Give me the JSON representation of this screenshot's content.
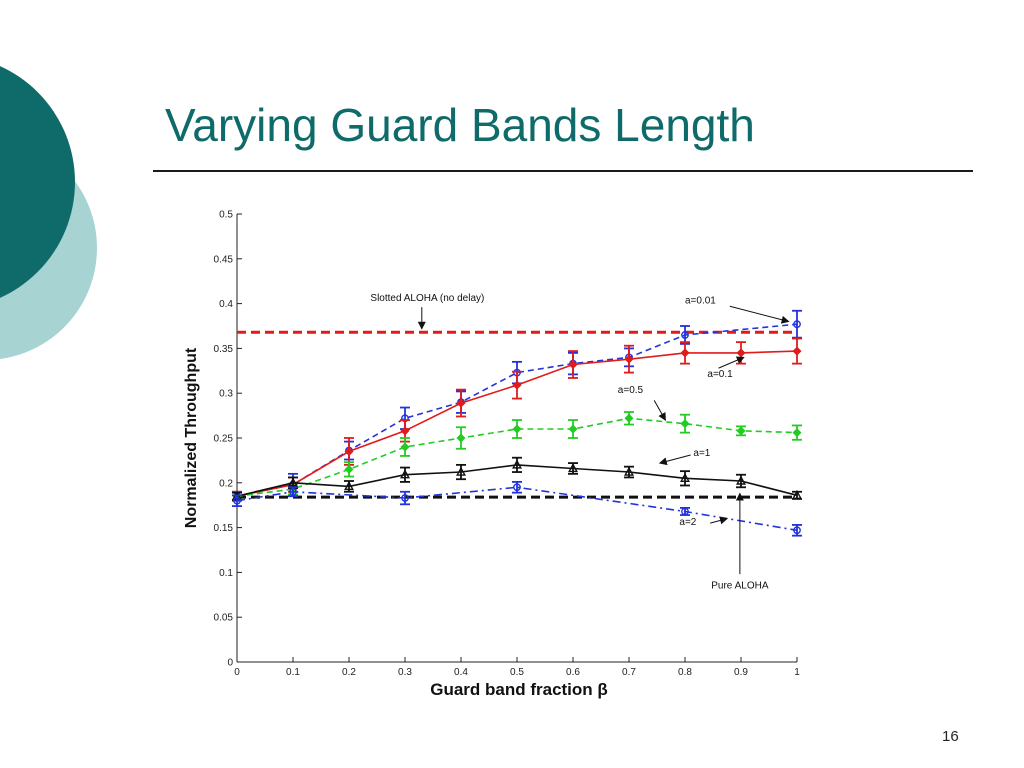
{
  "slide": {
    "title": "Varying Guard Bands Length",
    "page_number": "16",
    "colors": {
      "title": "#0e6b69",
      "deco_dark": "#0e6b69",
      "deco_light": "#a7d3d3"
    }
  },
  "chart_data": {
    "type": "line",
    "title": "",
    "xlabel": "Guard band fraction β",
    "ylabel": "Normalized Throughput",
    "xlim": [
      0,
      1
    ],
    "ylim": [
      0,
      0.5
    ],
    "x_ticks": [
      "0",
      "0.1",
      "0.2",
      "0.3",
      "0.4",
      "0.5",
      "0.6",
      "0.7",
      "0.8",
      "0.9",
      "1"
    ],
    "y_ticks": [
      "0",
      "0.05",
      "0.1",
      "0.15",
      "0.2",
      "0.25",
      "0.3",
      "0.35",
      "0.4",
      "0.45",
      "0.5"
    ],
    "grid": false,
    "series": [
      {
        "name": "a=0.01",
        "color": "#2233dd",
        "dash": "dashed",
        "marker": "circle",
        "points": [
          {
            "x": 0,
            "y": 0.185,
            "err": 0.005
          },
          {
            "x": 0.1,
            "y": 0.198,
            "err": 0.012
          },
          {
            "x": 0.2,
            "y": 0.236,
            "err": 0.01
          },
          {
            "x": 0.3,
            "y": 0.272,
            "err": 0.012
          },
          {
            "x": 0.4,
            "y": 0.29,
            "err": 0.012
          },
          {
            "x": 0.5,
            "y": 0.323,
            "err": 0.012
          },
          {
            "x": 0.6,
            "y": 0.333,
            "err": 0.012
          },
          {
            "x": 0.7,
            "y": 0.34,
            "err": 0.01
          },
          {
            "x": 0.8,
            "y": 0.365,
            "err": 0.01
          },
          {
            "x": 1,
            "y": 0.377,
            "err": 0.015
          }
        ]
      },
      {
        "name": "a=0.1",
        "color": "#e11b1b",
        "dash": "solid",
        "marker": "diamond",
        "points": [
          {
            "x": 0,
            "y": 0.185,
            "err": 0.005
          },
          {
            "x": 0.1,
            "y": 0.198,
            "err": 0.008
          },
          {
            "x": 0.2,
            "y": 0.235,
            "err": 0.015
          },
          {
            "x": 0.3,
            "y": 0.258,
            "err": 0.012
          },
          {
            "x": 0.4,
            "y": 0.289,
            "err": 0.015
          },
          {
            "x": 0.5,
            "y": 0.309,
            "err": 0.015
          },
          {
            "x": 0.6,
            "y": 0.332,
            "err": 0.015
          },
          {
            "x": 0.7,
            "y": 0.338,
            "err": 0.015
          },
          {
            "x": 0.8,
            "y": 0.345,
            "err": 0.012
          },
          {
            "x": 0.9,
            "y": 0.345,
            "err": 0.012
          },
          {
            "x": 1,
            "y": 0.347,
            "err": 0.014
          }
        ]
      },
      {
        "name": "a=0.5",
        "color": "#22cc22",
        "dash": "dashed",
        "marker": "diamond",
        "points": [
          {
            "x": 0,
            "y": 0.185,
            "err": 0.004
          },
          {
            "x": 0.1,
            "y": 0.193,
            "err": 0.006
          },
          {
            "x": 0.2,
            "y": 0.215,
            "err": 0.008
          },
          {
            "x": 0.3,
            "y": 0.24,
            "err": 0.01
          },
          {
            "x": 0.4,
            "y": 0.25,
            "err": 0.012
          },
          {
            "x": 0.5,
            "y": 0.26,
            "err": 0.01
          },
          {
            "x": 0.6,
            "y": 0.26,
            "err": 0.01
          },
          {
            "x": 0.7,
            "y": 0.272,
            "err": 0.007
          },
          {
            "x": 0.8,
            "y": 0.266,
            "err": 0.01
          },
          {
            "x": 0.9,
            "y": 0.258,
            "err": 0.005
          },
          {
            "x": 1,
            "y": 0.256,
            "err": 0.008
          }
        ]
      },
      {
        "name": "a=1",
        "color": "#111111",
        "dash": "solid",
        "marker": "triangle",
        "points": [
          {
            "x": 0,
            "y": 0.185,
            "err": 0.004
          },
          {
            "x": 0.1,
            "y": 0.2,
            "err": 0.006
          },
          {
            "x": 0.2,
            "y": 0.196,
            "err": 0.006
          },
          {
            "x": 0.3,
            "y": 0.209,
            "err": 0.008
          },
          {
            "x": 0.4,
            "y": 0.212,
            "err": 0.008
          },
          {
            "x": 0.5,
            "y": 0.22,
            "err": 0.008
          },
          {
            "x": 0.6,
            "y": 0.216,
            "err": 0.006
          },
          {
            "x": 0.7,
            "y": 0.212,
            "err": 0.006
          },
          {
            "x": 0.8,
            "y": 0.205,
            "err": 0.008
          },
          {
            "x": 0.9,
            "y": 0.202,
            "err": 0.007
          },
          {
            "x": 1,
            "y": 0.186,
            "err": 0.004
          }
        ]
      },
      {
        "name": "a=2",
        "color": "#2233dd",
        "dash": "dashdot",
        "marker": "circle",
        "points": [
          {
            "x": 0,
            "y": 0.18,
            "err": 0.006
          },
          {
            "x": 0.1,
            "y": 0.19,
            "err": 0.005
          },
          {
            "x": 0.3,
            "y": 0.183,
            "err": 0.007
          },
          {
            "x": 0.5,
            "y": 0.195,
            "err": 0.006
          },
          {
            "x": 0.8,
            "y": 0.168,
            "err": 0.004
          },
          {
            "x": 1,
            "y": 0.147,
            "err": 0.006
          }
        ]
      }
    ],
    "reference_lines": [
      {
        "name": "Slotted ALOHA (no delay)",
        "y": 0.368,
        "color": "#e11b1b"
      },
      {
        "name": "Pure ALOHA",
        "y": 0.184,
        "color": "#111111"
      }
    ],
    "annotations": [
      {
        "id": "slotted",
        "text": "Slotted ALOHA (no delay)",
        "tx": 0.34,
        "ty": 0.403,
        "anchor": "middle",
        "arrow_from": [
          0.33,
          0.396
        ],
        "arrow_to": [
          0.33,
          0.372
        ]
      },
      {
        "id": "a001",
        "text": "a=0.01",
        "tx": 0.8,
        "ty": 0.4,
        "anchor": "start",
        "arrow_from": [
          0.88,
          0.397
        ],
        "arrow_to": [
          0.985,
          0.38
        ]
      },
      {
        "id": "a01",
        "text": "a=0.1",
        "tx": 0.84,
        "ty": 0.318,
        "anchor": "start",
        "arrow_from": [
          0.86,
          0.328
        ],
        "arrow_to": [
          0.905,
          0.34
        ]
      },
      {
        "id": "a05",
        "text": "a=0.5",
        "tx": 0.68,
        "ty": 0.3,
        "anchor": "start",
        "arrow_from": [
          0.745,
          0.292
        ],
        "arrow_to": [
          0.765,
          0.27
        ]
      },
      {
        "id": "a1",
        "text": "a=1",
        "tx": 0.815,
        "ty": 0.23,
        "anchor": "start",
        "arrow_from": [
          0.81,
          0.231
        ],
        "arrow_to": [
          0.755,
          0.222
        ]
      },
      {
        "id": "a2",
        "text": "a=2",
        "tx": 0.79,
        "ty": 0.153,
        "anchor": "start",
        "arrow_from": [
          0.845,
          0.155
        ],
        "arrow_to": [
          0.875,
          0.16
        ]
      },
      {
        "id": "pure",
        "text": "Pure ALOHA",
        "tx": 0.898,
        "ty": 0.082,
        "anchor": "middle",
        "arrow_from": [
          0.898,
          0.098
        ],
        "arrow_to": [
          0.898,
          0.188
        ]
      }
    ]
  }
}
